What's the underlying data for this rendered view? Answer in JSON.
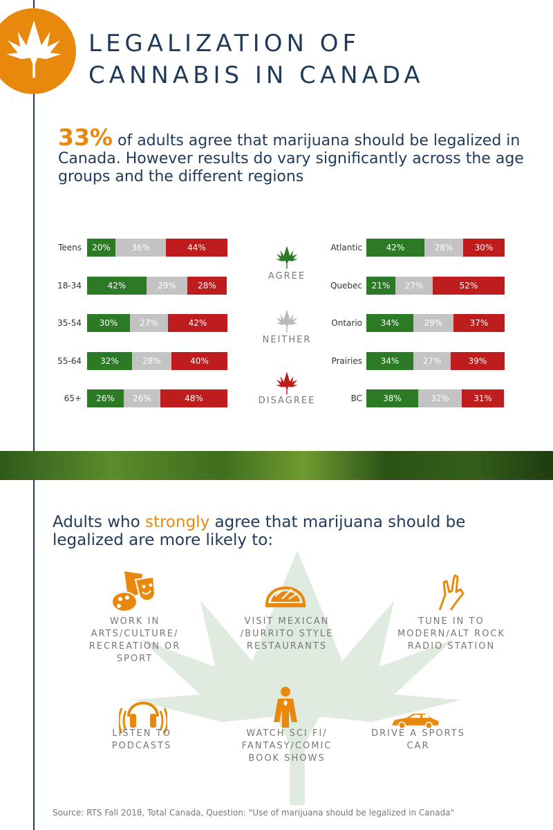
{
  "header": {
    "title_line1": "LEGALIZATION OF",
    "title_line2": "CANNABIS IN CANADA"
  },
  "intro": {
    "percent": "33%",
    "text": " of adults agree that marijuana should be legalized in Canada. However results do vary significantly across the age groups and the different regions"
  },
  "legend": {
    "agree": "AGREE",
    "neither": "NEITHER",
    "disagree": "DISAGREE"
  },
  "colors": {
    "agree": "#2c7a25",
    "neither": "#c3c3c3",
    "disagree": "#bf1d1d",
    "accent": "#e8890e",
    "navy": "#1f3a5a"
  },
  "chart_data": [
    {
      "type": "bar",
      "stacked": true,
      "categories": [
        "Teens",
        "18-34",
        "35-54",
        "55-64",
        "65+"
      ],
      "series": [
        {
          "name": "Agree",
          "values": [
            20,
            42,
            30,
            32,
            26
          ],
          "labels": [
            "20%",
            "42%",
            "30%",
            "32%",
            "26%"
          ]
        },
        {
          "name": "Neither",
          "values": [
            36,
            29,
            27,
            28,
            26
          ],
          "labels": [
            "36%",
            "29%",
            "27%",
            "28%",
            "26%"
          ]
        },
        {
          "name": "Disagree",
          "values": [
            44,
            28,
            42,
            40,
            48
          ],
          "labels": [
            "44%",
            "28%",
            "42%",
            "40%",
            "48%"
          ]
        }
      ]
    },
    {
      "type": "bar",
      "stacked": true,
      "categories": [
        "Atlantic",
        "Quebec",
        "Ontario",
        "Prairies",
        "BC"
      ],
      "series": [
        {
          "name": "Agree",
          "values": [
            42,
            21,
            34,
            34,
            38
          ],
          "labels": [
            "42%",
            "21%",
            "34%",
            "34%",
            "38%"
          ]
        },
        {
          "name": "Neither",
          "values": [
            28,
            27,
            29,
            27,
            32
          ],
          "labels": [
            "28%",
            "27%",
            "29%",
            "27%",
            "32%"
          ]
        },
        {
          "name": "Disagree",
          "values": [
            30,
            52,
            37,
            39,
            31
          ],
          "labels": [
            "30%",
            "52%",
            "37%",
            "39%",
            "31%"
          ]
        }
      ]
    }
  ],
  "subheading": {
    "before": "Adults who ",
    "highlight": "strongly",
    "after": " agree that marijuana should be legalized are more likely to:"
  },
  "items": [
    {
      "icon": "theater-masks-palette-icon",
      "label": "WORK IN ARTS/CULTURE/ RECREATION OR SPORT"
    },
    {
      "icon": "taco-icon",
      "label": "VISIT MEXICAN /BURRITO STYLE RESTAURANTS"
    },
    {
      "icon": "rock-hand-icon",
      "label": "TUNE IN TO MODERN/ALT ROCK RADIO STATION"
    },
    {
      "icon": "headphones-icon",
      "label": "LISTEN TO PODCASTS"
    },
    {
      "icon": "superhero-icon",
      "label": "WATCH SCI FI/ FANTASY/COMIC BOOK SHOWS"
    },
    {
      "icon": "sports-car-icon",
      "label": "DRIVE A SPORTS CAR"
    }
  ],
  "source": "Source:  RTS Fall 2018, Total Canada, Question: \"Use of marijuana should be legalized in Canada\""
}
